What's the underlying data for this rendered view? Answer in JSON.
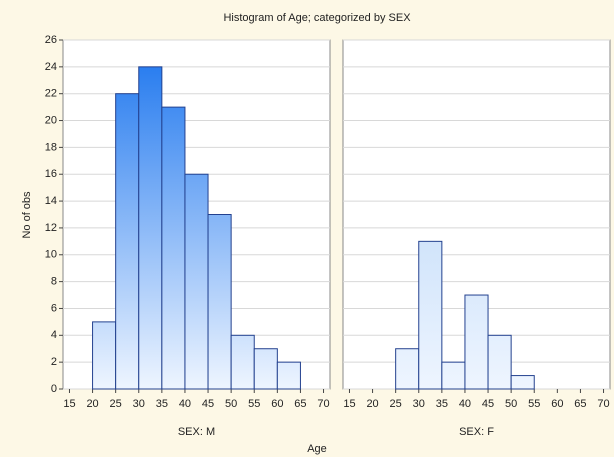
{
  "title": "Histogram of Age; categorized by SEX",
  "xlabel": "Age",
  "ylabel": "No of obs",
  "chart_data": [
    {
      "type": "histogram",
      "label": "SEX: M",
      "color": "#1a74ee",
      "bins": [
        20,
        25,
        30,
        35,
        40,
        45,
        50,
        55,
        60,
        65
      ],
      "values": [
        5,
        22,
        24,
        21,
        16,
        13,
        4,
        3,
        2
      ],
      "xlim": [
        13.6,
        71.4
      ],
      "xticks": [
        15,
        20,
        25,
        30,
        35,
        40,
        45,
        50,
        55,
        60,
        65,
        70
      ],
      "ylim": [
        0,
        26
      ],
      "yticks": [
        0,
        2,
        4,
        6,
        8,
        10,
        12,
        14,
        16,
        18,
        20,
        22,
        24,
        26
      ],
      "grid": true
    },
    {
      "type": "histogram",
      "label": "SEX: F",
      "color": "#a9cdf5",
      "bins": [
        25,
        30,
        35,
        40,
        45,
        50,
        55
      ],
      "values": [
        3,
        11,
        2,
        7,
        4,
        1
      ],
      "xlim": [
        13.6,
        71.4
      ],
      "xticks": [
        15,
        20,
        25,
        30,
        35,
        40,
        45,
        50,
        55,
        60,
        65,
        70
      ],
      "ylim": [
        0,
        26
      ],
      "yticks": [
        0,
        2,
        4,
        6,
        8,
        10,
        12,
        14,
        16,
        18,
        20,
        22,
        24,
        26
      ],
      "grid": true
    }
  ]
}
